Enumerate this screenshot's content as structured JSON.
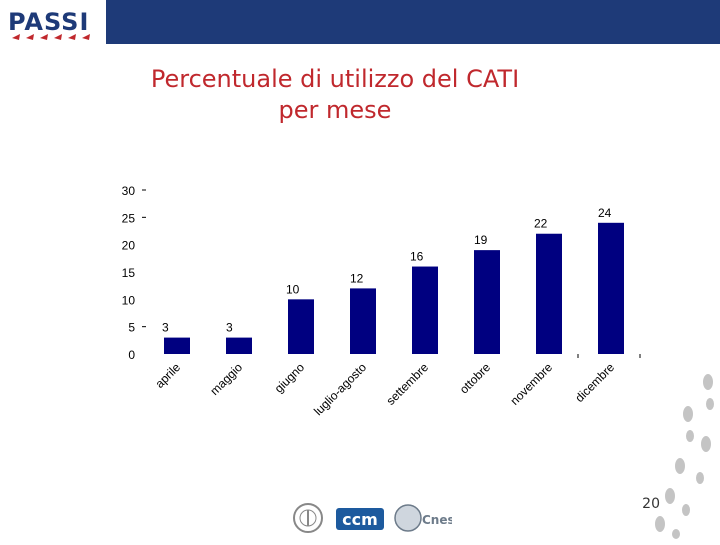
{
  "header": {
    "logo_text": "PASSI"
  },
  "title": {
    "line1": "Percentuale di utilizzo del CATI",
    "line2": "per mese"
  },
  "page_number": "20",
  "footer": {
    "logos": [
      "istituto-superiore-di-sanita-seal",
      "ccm-logo",
      "cnesps-logo"
    ],
    "ccm_text": "ccm",
    "cnesps_text": "Cnesps"
  },
  "colors": {
    "bar": "#000080",
    "title": "#c0282d",
    "header": "#1e3a78"
  },
  "chart_data": {
    "type": "bar",
    "title": "",
    "xlabel": "",
    "ylabel": "",
    "categories": [
      "aprile",
      "maggio",
      "giugno",
      "luglio-agosto",
      "settembre",
      "ottobre",
      "novembre",
      "dicembre"
    ],
    "values": [
      3,
      3,
      10,
      12,
      16,
      19,
      22,
      24
    ],
    "data_labels": [
      "3",
      "3",
      "10",
      "12",
      "16",
      "19",
      "22",
      "24"
    ],
    "y_ticks": [
      "0",
      "5",
      "10",
      "15",
      "20",
      "25",
      "30"
    ],
    "ylim": [
      0,
      30
    ],
    "grid": false,
    "legend": "none"
  }
}
